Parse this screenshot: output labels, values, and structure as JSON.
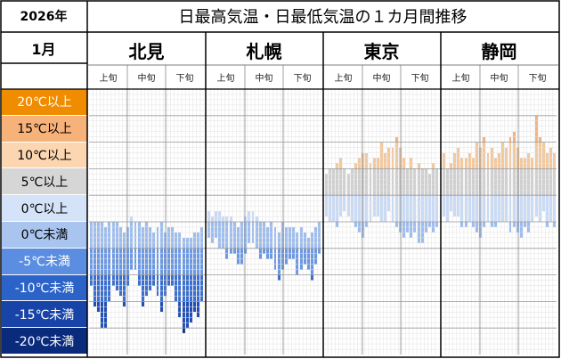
{
  "header": {
    "year": "2026年",
    "month": "1月",
    "title": "日最高気温・日最低気温の１カ月間推移"
  },
  "dekads": [
    "上旬",
    "中旬",
    "下旬"
  ],
  "bands": [
    {
      "label": "20℃以上",
      "bg": "#f08c00",
      "fg": "#ffffff"
    },
    {
      "label": "15℃以上",
      "bg": "#f7b27a",
      "fg": "#000000"
    },
    {
      "label": "10℃以上",
      "bg": "#fbd6b0",
      "fg": "#000000"
    },
    {
      "label": "5℃以上",
      "bg": "#d6d6d6",
      "fg": "#000000"
    },
    {
      "label": "0℃以上",
      "bg": "#d4e3f7",
      "fg": "#000000"
    },
    {
      "label": "0℃未満",
      "bg": "#a8c4ef",
      "fg": "#000000"
    },
    {
      "label": "-5℃未満",
      "bg": "#5b8ee0",
      "fg": "#ffffff"
    },
    {
      "label": "-10℃未満",
      "bg": "#2b63c8",
      "fg": "#ffffff"
    },
    {
      "label": "-15℃未満",
      "bg": "#1844a8",
      "fg": "#ffffff"
    },
    {
      "label": "-20℃未満",
      "bg": "#0a2a7c",
      "fg": "#ffffff"
    }
  ],
  "chart_data": {
    "type": "bar",
    "unit": "℃",
    "x": [
      1,
      2,
      3,
      4,
      5,
      6,
      7,
      8,
      9,
      10,
      11,
      12,
      13,
      14,
      15,
      16,
      17,
      18,
      19,
      20,
      21,
      22,
      23,
      24,
      25,
      26,
      27,
      28,
      29,
      30,
      31
    ],
    "ylim": [
      -25,
      25
    ],
    "panels": [
      {
        "name": "北見",
        "high": [
          0,
          0,
          0,
          0,
          -1,
          0,
          0,
          0,
          -1,
          -2,
          -1,
          1,
          0,
          0,
          -1,
          0,
          -1,
          -2,
          -1,
          0,
          -2,
          -1,
          -1,
          -2,
          -2,
          -3,
          -3,
          -3,
          -2,
          -2,
          -1
        ],
        "low": [
          -12,
          -16,
          -17,
          -20,
          -20,
          -15,
          -12,
          -13,
          -14,
          -16,
          -12,
          -9,
          -9,
          -12,
          -16,
          -14,
          -13,
          -12,
          -14,
          -17,
          -14,
          -12,
          -12,
          -15,
          -18,
          -21,
          -20,
          -19,
          -17,
          -18,
          -15
        ]
      },
      {
        "name": "札幌",
        "high": [
          2,
          1,
          2,
          2,
          1,
          1,
          1,
          0,
          -1,
          0,
          1,
          2,
          2,
          1,
          0,
          0,
          -1,
          0,
          -1,
          -2,
          0,
          -1,
          -1,
          -1,
          -2,
          -1,
          -2,
          -3,
          -2,
          -1,
          0
        ],
        "low": [
          -3,
          -4,
          -3,
          -5,
          -5,
          -7,
          -6,
          -6,
          -8,
          -8,
          -6,
          -4,
          -4,
          -5,
          -7,
          -6,
          -7,
          -7,
          -9,
          -11,
          -9,
          -8,
          -7,
          -7,
          -10,
          -9,
          -8,
          -9,
          -11,
          -8,
          -6
        ]
      },
      {
        "name": "東京",
        "high": [
          9,
          10,
          10,
          11,
          12,
          10,
          9,
          10,
          11,
          12,
          13,
          13,
          11,
          12,
          12,
          15,
          13,
          14,
          14,
          16,
          14,
          12,
          10,
          12,
          10,
          11,
          10,
          10,
          9,
          11,
          10
        ],
        "low": [
          1,
          0,
          0,
          -1,
          1,
          2,
          1,
          0,
          -1,
          -2,
          -3,
          -1,
          0,
          1,
          1,
          0,
          0,
          2,
          0,
          -1,
          -2,
          -3,
          -2,
          -3,
          -2,
          -4,
          -4,
          -2,
          -1,
          -2,
          -1
        ]
      },
      {
        "name": "静岡",
        "high": [
          13,
          10,
          11,
          13,
          14,
          12,
          12,
          13,
          12,
          15,
          14,
          16,
          13,
          14,
          12,
          13,
          15,
          14,
          16,
          17,
          14,
          12,
          12,
          13,
          12,
          20,
          16,
          15,
          13,
          14,
          13
        ],
        "low": [
          1,
          0,
          2,
          1,
          1,
          -1,
          -1,
          0,
          -1,
          -2,
          -3,
          -1,
          0,
          -1,
          -1,
          0,
          0,
          0,
          -2,
          -1,
          -2,
          -3,
          -1,
          -2,
          0,
          1,
          0,
          2,
          -1,
          0,
          -1
        ]
      }
    ]
  }
}
